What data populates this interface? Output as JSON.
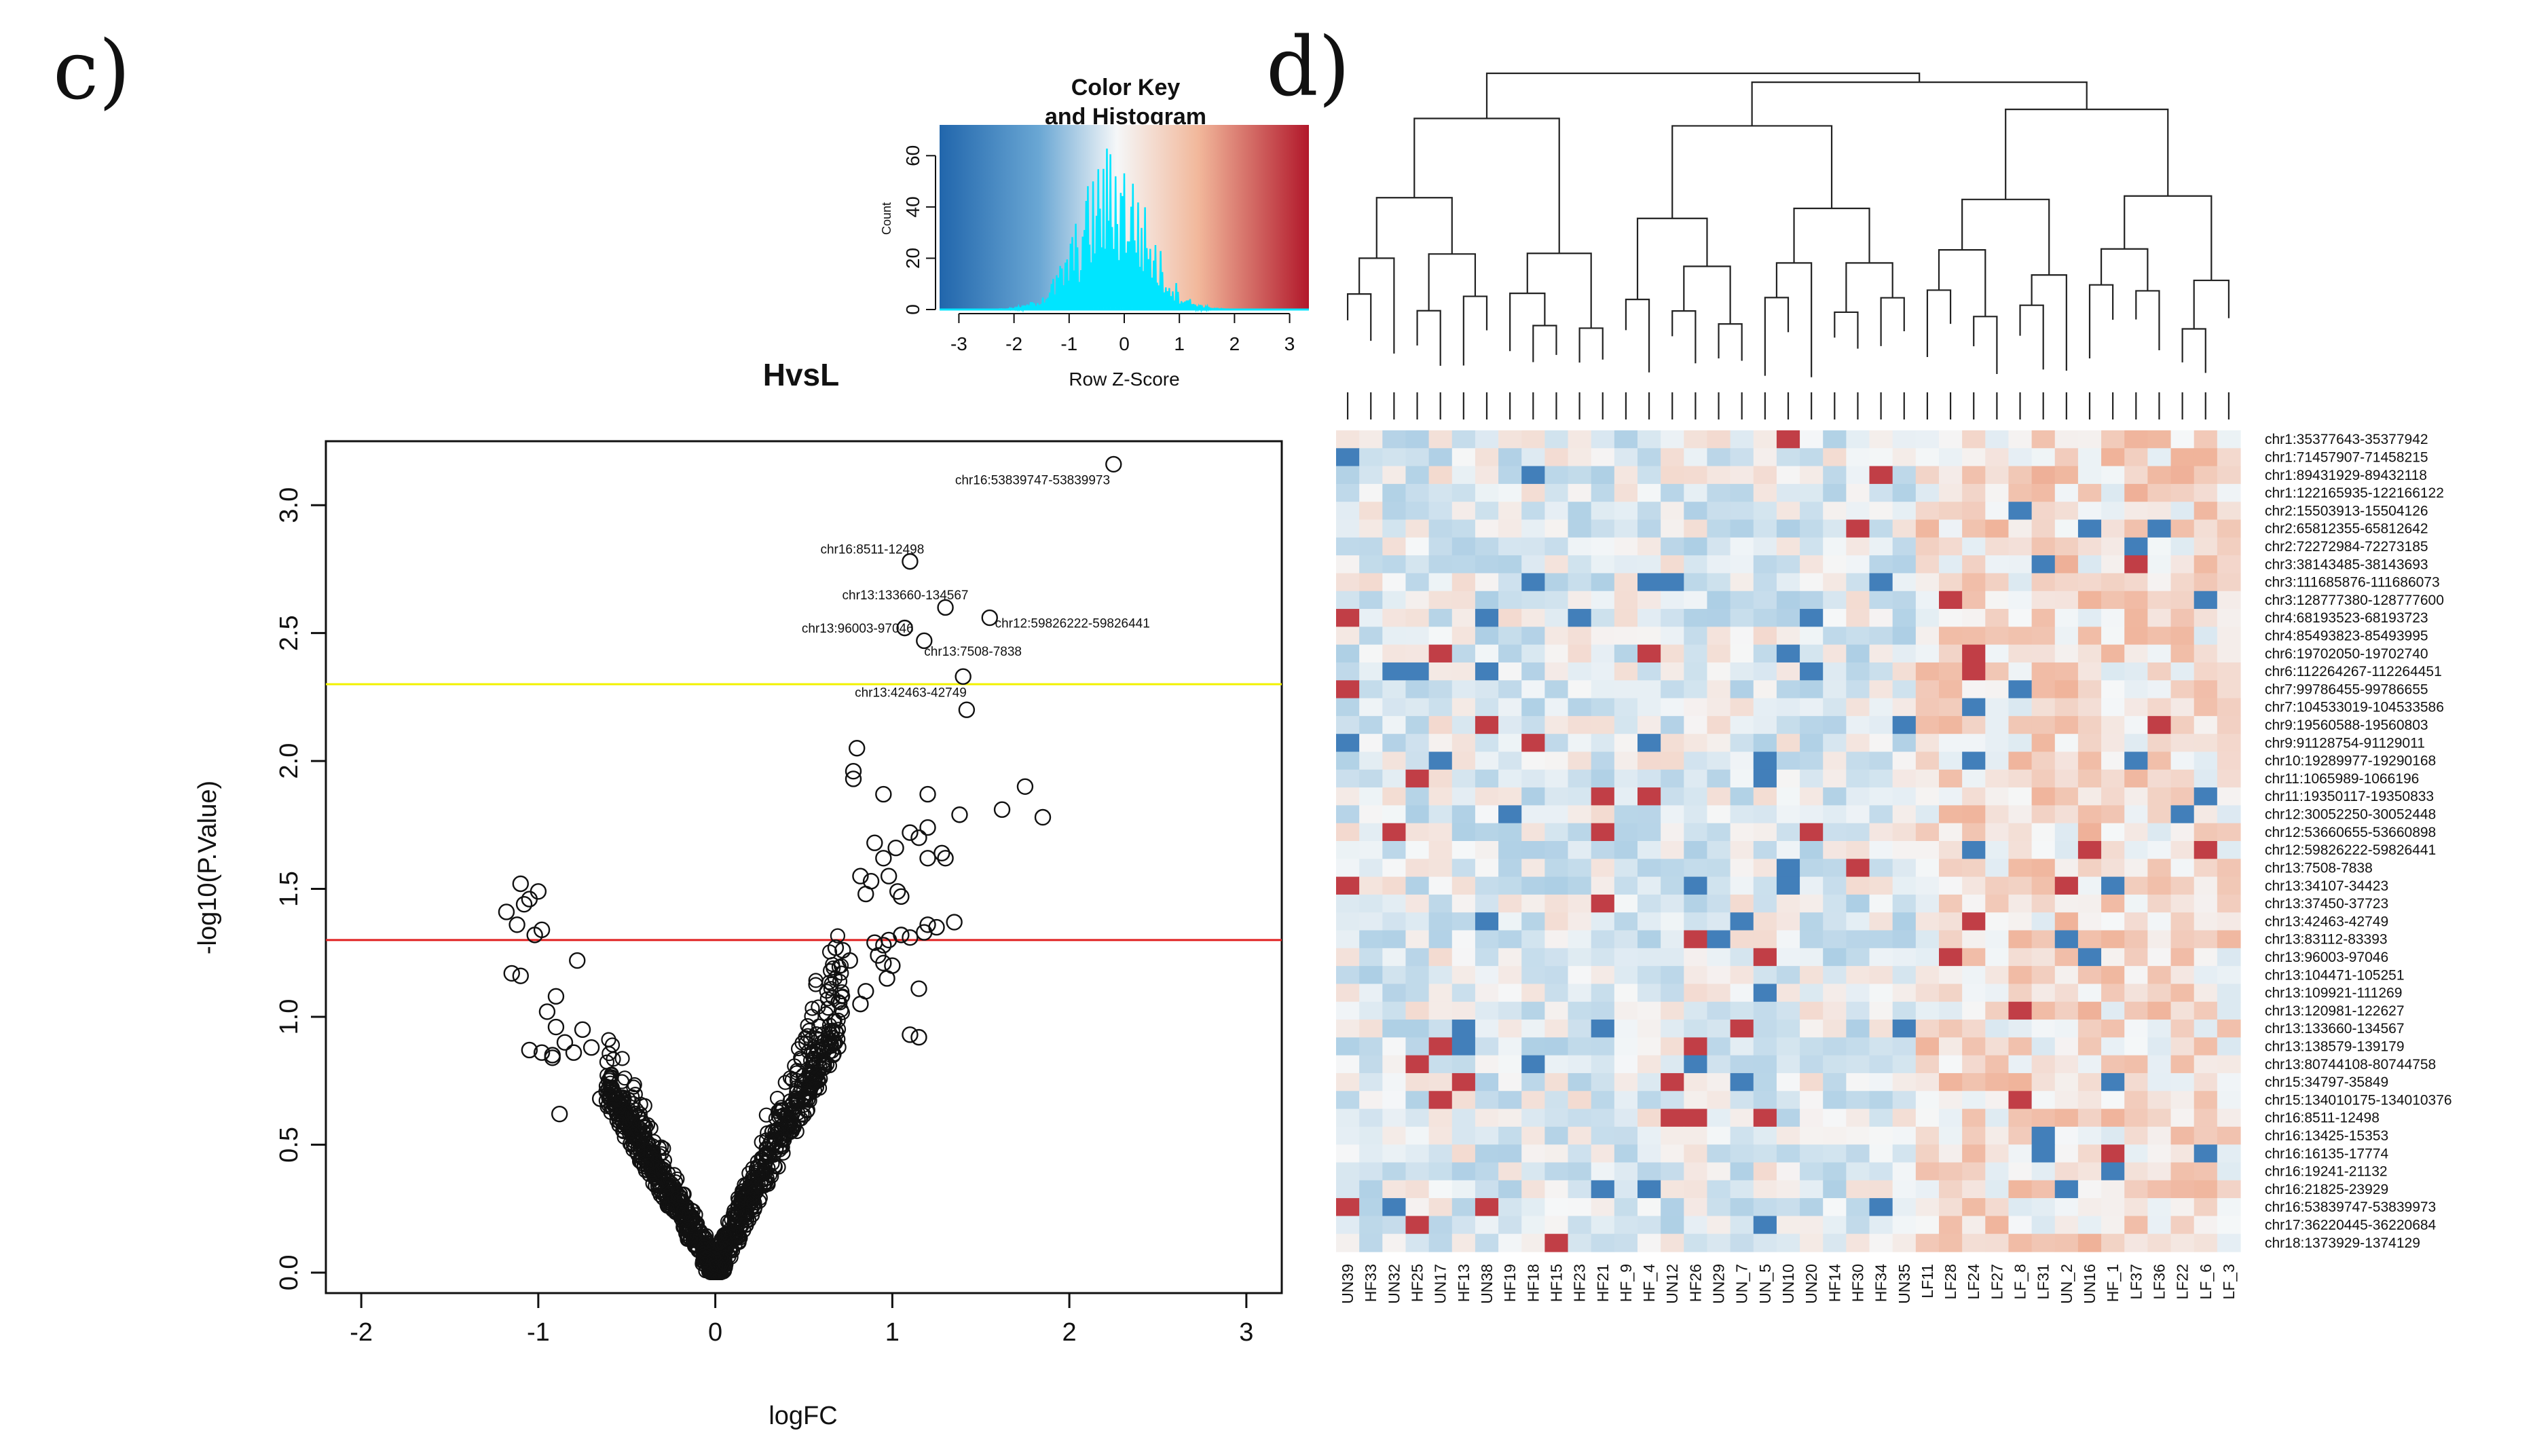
{
  "panels": {
    "left_letter": "c)",
    "right_letter": "d)"
  },
  "colors": {
    "low": "#2166ac",
    "mid": "#f5f7f8",
    "high": "#b2182b",
    "histogram": "#00e5ff",
    "threshold_yellow": "#f2f200",
    "threshold_red": "#e02020",
    "ink": "#111111"
  },
  "chart_data": [
    {
      "type": "scatter",
      "title": "HvsL",
      "xlabel": "logFC",
      "ylabel": "-log10(P.Value)",
      "xlim": [
        -2.2,
        3.2
      ],
      "ylim": [
        -0.08,
        3.25
      ],
      "x_ticks": [
        -2,
        -1,
        0,
        1,
        2,
        3
      ],
      "y_ticks": [
        0.0,
        0.5,
        1.0,
        1.5,
        2.0,
        2.5,
        3.0
      ],
      "thresholds": [
        {
          "name": "yellow-line",
          "y": 2.3,
          "color": "#f2f200"
        },
        {
          "name": "red-line",
          "y": 1.3,
          "color": "#e02020"
        }
      ],
      "labeled_points": [
        {
          "label": "chr16:53839747-53839973",
          "x": 2.25,
          "y": 3.16
        },
        {
          "label": "chr16:8511-12498",
          "x": 1.1,
          "y": 2.78
        },
        {
          "label": "chr13:133660-134567",
          "x": 1.3,
          "y": 2.6
        },
        {
          "label": "chr13:96003-97046",
          "x": 1.07,
          "y": 2.52
        },
        {
          "label": "chr12:59826222-59826441",
          "x": 1.55,
          "y": 2.56
        },
        {
          "label": "chr13:7508-7838",
          "x": 1.18,
          "y": 2.47
        },
        {
          "label": "chr13:42463-42749",
          "x": 1.4,
          "y": 2.33
        }
      ],
      "points": [
        [
          2.25,
          3.16
        ],
        [
          1.1,
          2.78
        ],
        [
          1.3,
          2.6
        ],
        [
          1.07,
          2.52
        ],
        [
          1.55,
          2.56
        ],
        [
          1.18,
          2.47
        ],
        [
          1.4,
          2.33
        ],
        [
          1.42,
          2.2
        ],
        [
          0.8,
          2.05
        ],
        [
          0.78,
          1.96
        ],
        [
          0.78,
          1.93
        ],
        [
          0.95,
          1.87
        ],
        [
          1.75,
          1.9
        ],
        [
          1.62,
          1.81
        ],
        [
          1.85,
          1.78
        ],
        [
          1.2,
          1.87
        ],
        [
          1.38,
          1.79
        ],
        [
          1.1,
          1.72
        ],
        [
          1.15,
          1.7
        ],
        [
          1.2,
          1.74
        ],
        [
          0.9,
          1.68
        ],
        [
          1.28,
          1.64
        ],
        [
          1.3,
          1.62
        ],
        [
          0.95,
          1.62
        ],
        [
          1.02,
          1.66
        ],
        [
          0.82,
          1.55
        ],
        [
          0.88,
          1.53
        ],
        [
          0.98,
          1.55
        ],
        [
          1.03,
          1.49
        ],
        [
          1.2,
          1.62
        ],
        [
          1.05,
          1.47
        ],
        [
          0.85,
          1.48
        ],
        [
          1.35,
          1.37
        ],
        [
          1.2,
          1.36
        ],
        [
          1.18,
          1.33
        ],
        [
          1.25,
          1.35
        ],
        [
          1.1,
          1.31
        ],
        [
          0.98,
          1.3
        ],
        [
          0.95,
          1.28
        ],
        [
          1.05,
          1.32
        ],
        [
          0.9,
          1.29
        ],
        [
          0.68,
          1.27
        ],
        [
          0.72,
          1.26
        ],
        [
          0.76,
          1.22
        ],
        [
          0.92,
          1.24
        ],
        [
          0.97,
          1.15
        ],
        [
          0.95,
          1.21
        ],
        [
          1.0,
          1.2
        ],
        [
          1.15,
          1.11
        ],
        [
          1.15,
          0.92
        ],
        [
          1.1,
          0.93
        ],
        [
          0.82,
          1.05
        ],
        [
          0.85,
          1.1
        ],
        [
          -1.1,
          1.52
        ],
        [
          -1.0,
          1.49
        ],
        [
          -1.05,
          1.46
        ],
        [
          -1.08,
          1.44
        ],
        [
          -1.18,
          1.41
        ],
        [
          -1.12,
          1.36
        ],
        [
          -0.98,
          1.34
        ],
        [
          -1.02,
          1.32
        ],
        [
          -1.15,
          1.17
        ],
        [
          -1.1,
          1.16
        ],
        [
          -0.78,
          1.22
        ],
        [
          -0.9,
          1.08
        ],
        [
          -0.95,
          1.02
        ],
        [
          -0.9,
          0.96
        ],
        [
          -1.05,
          0.87
        ],
        [
          -0.85,
          0.9
        ],
        [
          -0.75,
          0.95
        ],
        [
          -0.7,
          0.88
        ],
        [
          -0.92,
          0.85
        ],
        [
          -0.98,
          0.86
        ],
        [
          -0.88,
          0.62
        ],
        [
          -0.6,
          0.75
        ],
        [
          -0.65,
          0.68
        ],
        [
          -0.55,
          0.62
        ],
        [
          -0.92,
          0.84
        ],
        [
          -0.8,
          0.86
        ]
      ]
    },
    {
      "type": "histogram",
      "title": "Color Key\nand Histogram",
      "title_lines": [
        "Color Key",
        "and Histogram"
      ],
      "xlabel": "Row Z-Score",
      "ylabel": "Count",
      "x_ticks": [
        -3,
        -2,
        -1,
        0,
        1,
        2,
        3
      ],
      "y_ticks": [
        0,
        20,
        40,
        60
      ],
      "xlim": [
        -3.35,
        3.35
      ],
      "ylim": [
        0,
        72
      ]
    },
    {
      "type": "heatmap",
      "row_labels": [
        "chr1:35377643-35377942",
        "chr1:71457907-71458215",
        "chr1:89431929-89432118",
        "chr1:122165935-122166122",
        "chr2:15503913-15504126",
        "chr2:65812355-65812642",
        "chr2:72272984-72273185",
        "chr3:38143485-38143693",
        "chr3:111685876-111686073",
        "chr3:128777380-128777600",
        "chr4:68193523-68193723",
        "chr4:85493823-85493995",
        "chr6:19702050-19702740",
        "chr6:112264267-112264451",
        "chr7:99786455-99786655",
        "chr7:104533019-104533586",
        "chr9:19560588-19560803",
        "chr9:91128754-91129011",
        "chr10:19289977-19290168",
        "chr11:1065989-1066196",
        "chr11:19350117-19350833",
        "chr12:30052250-30052448",
        "chr12:53660655-53660898",
        "chr12:59826222-59826441",
        "chr13:7508-7838",
        "chr13:34107-34423",
        "chr13:37450-37723",
        "chr13:42463-42749",
        "chr13:83112-83393",
        "chr13:96003-97046",
        "chr13:104471-105251",
        "chr13:109921-111269",
        "chr13:120981-122627",
        "chr13:133660-134567",
        "chr13:138579-139179",
        "chr13:80744108-80744758",
        "chr15:34797-35849",
        "chr15:134010175-134010376",
        "chr16:8511-12498",
        "chr16:13425-15353",
        "chr16:16135-17774",
        "chr16:19241-21132",
        "chr16:21825-23929",
        "chr16:53839747-53839973",
        "chr17:36220445-36220684",
        "chr18:1373929-1374129"
      ],
      "col_labels": [
        "UN39",
        "HF33",
        "UN32",
        "HF25",
        "UN17",
        "HF13",
        "UN38",
        "HF19",
        "HF18",
        "HF15",
        "HF23",
        "HF21",
        "HF_9",
        "HF_4",
        "UN12",
        "HF26",
        "UN29",
        "UN_7",
        "UN_5",
        "UN10",
        "UN20",
        "HF14",
        "HF30",
        "HF34",
        "UN35",
        "LF11",
        "LF28",
        "LF24",
        "LF27",
        "LF_8",
        "LF31",
        "UN_2",
        "UN16",
        "HF_1",
        "LF37",
        "LF36",
        "LF22",
        "LF_6",
        "LF_3"
      ]
    }
  ]
}
